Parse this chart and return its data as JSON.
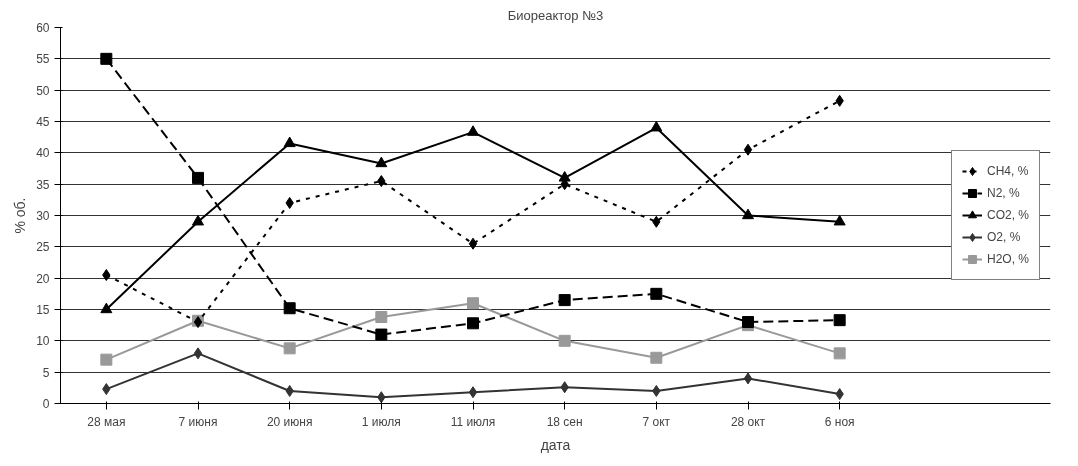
{
  "chart_data": {
    "type": "line",
    "title": "Биореактор №3",
    "xlabel": "дата",
    "ylabel": "% об.",
    "categories": [
      "28 мая",
      "7 июня",
      "20 июня",
      "1 июля",
      "11 июля",
      "18 сен",
      "7 окт",
      "28 окт",
      "6 ноя"
    ],
    "ylim": [
      0,
      60
    ],
    "yticks": [
      0,
      5,
      10,
      15,
      20,
      25,
      30,
      35,
      40,
      45,
      50,
      55,
      60
    ],
    "grid": "y",
    "legend": "right",
    "series": [
      {
        "name": "CH4, %",
        "color": "#000000",
        "marker": "diamond",
        "line_style": "dotted",
        "values": [
          20.5,
          13,
          32,
          35.5,
          25.5,
          35,
          29,
          40.5,
          48.3
        ]
      },
      {
        "name": "N2, %",
        "color": "#000000",
        "marker": "square",
        "line_style": "dashed",
        "values": [
          55,
          36,
          15.2,
          11,
          12.8,
          16.5,
          17.5,
          13,
          13.3
        ]
      },
      {
        "name": "CO2, %",
        "color": "#000000",
        "marker": "triangle",
        "line_style": "solid",
        "values": [
          15,
          29,
          41.5,
          38.3,
          43.3,
          36,
          44,
          30,
          29
        ]
      },
      {
        "name": "O2, %",
        "color": "#333333",
        "marker": "diamond",
        "line_style": "solid",
        "values": [
          2.3,
          8,
          2,
          1,
          1.8,
          2.6,
          2,
          4,
          1.5
        ]
      },
      {
        "name": "H2O, %",
        "color": "#999999",
        "marker": "square",
        "line_style": "solid",
        "values": [
          7,
          13.2,
          8.8,
          13.8,
          16,
          10,
          7.3,
          12.5,
          8
        ]
      }
    ]
  }
}
